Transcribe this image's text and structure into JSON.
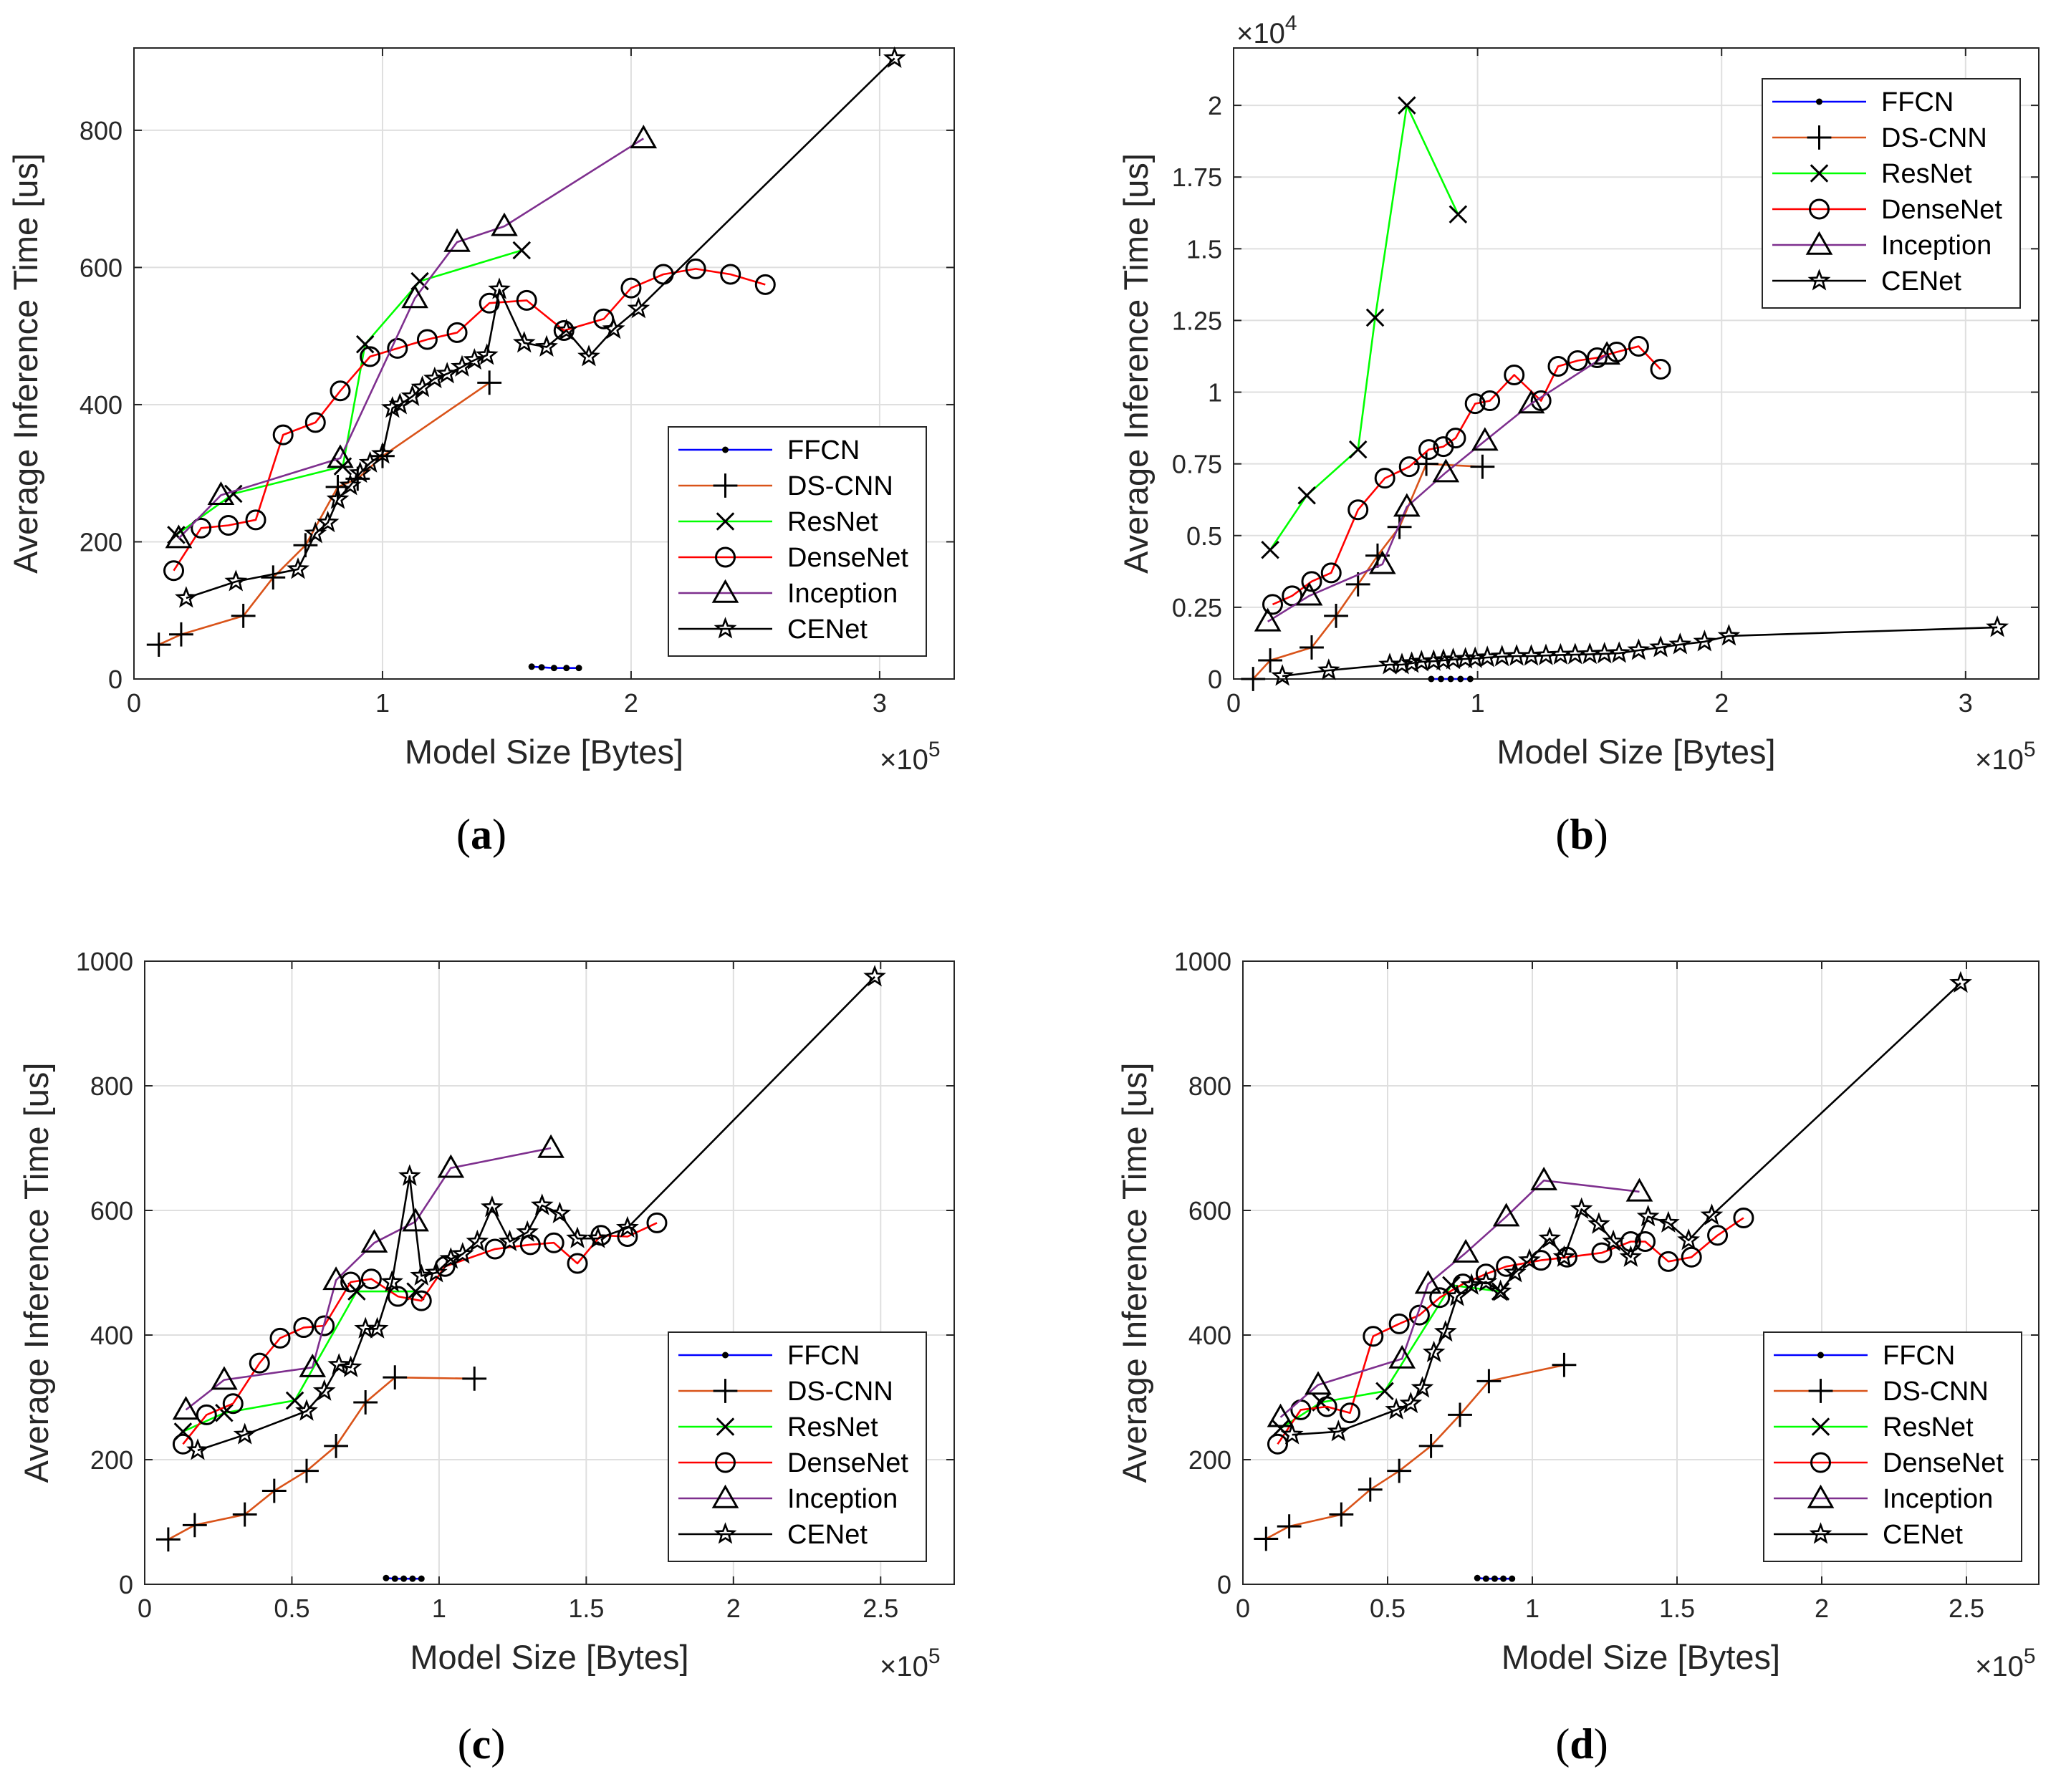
{
  "legend_entries": [
    "FFCN",
    "DS-CNN",
    "ResNet",
    "DenseNet",
    "Inception",
    "CENet"
  ],
  "series_styles": {
    "FFCN": {
      "color": "#0000ff",
      "marker": "dot"
    },
    "DS-CNN": {
      "color": "#d95319",
      "marker": "plus"
    },
    "ResNet": {
      "color": "#00ff00",
      "marker": "x"
    },
    "DenseNet": {
      "color": "#ff0000",
      "marker": "circle"
    },
    "Inception": {
      "color": "#7e2f8e",
      "marker": "triangle"
    },
    "CENet": {
      "color": "#000000",
      "marker": "star"
    }
  },
  "chart_data": [
    {
      "panel": "a",
      "type": "line",
      "panel_label_letter": "a",
      "xlabel": "Model Size [Bytes]",
      "ylabel": "Average Inference Time [us]",
      "x_exponent_label": "×10",
      "x_exponent_power": "5",
      "y_exponent_label": "",
      "y_exponent_power": "",
      "xlim": [
        0,
        3.3
      ],
      "ylim": [
        0,
        920
      ],
      "x_ticks": [
        0,
        1,
        2,
        3
      ],
      "x_tick_labels": [
        "0",
        "1",
        "2",
        "3"
      ],
      "y_ticks": [
        0,
        200,
        400,
        600,
        800
      ],
      "y_tick_labels": [
        "0",
        "200",
        "400",
        "600",
        "800"
      ],
      "grid": true,
      "legend_position": "bottom-right",
      "series": [
        {
          "name": "FFCN",
          "x": [
            1.6,
            1.64,
            1.69,
            1.74,
            1.79
          ],
          "y": [
            18,
            17,
            16,
            16,
            16
          ]
        },
        {
          "name": "DS-CNN",
          "x": [
            0.1,
            0.19,
            0.44,
            0.56,
            0.69,
            0.82,
            0.9,
            1.0,
            1.43
          ],
          "y": [
            50,
            65,
            92,
            148,
            195,
            280,
            292,
            325,
            432
          ]
        },
        {
          "name": "ResNet",
          "x": [
            0.17,
            0.4,
            0.84,
            0.93,
            1.15,
            1.56
          ],
          "y": [
            210,
            270,
            310,
            488,
            580,
            625
          ]
        },
        {
          "name": "DenseNet",
          "x": [
            0.16,
            0.27,
            0.38,
            0.49,
            0.6,
            0.73,
            0.83,
            0.95,
            1.06,
            1.18,
            1.3,
            1.43,
            1.58,
            1.73,
            1.89,
            2.0,
            2.13,
            2.26,
            2.4,
            2.54
          ],
          "y": [
            158,
            220,
            224,
            232,
            356,
            374,
            420,
            470,
            482,
            495,
            505,
            548,
            552,
            508,
            525,
            570,
            590,
            598,
            590,
            575
          ]
        },
        {
          "name": "Inception",
          "x": [
            0.18,
            0.35,
            0.83,
            1.13,
            1.3,
            1.49,
            2.05
          ],
          "y": [
            205,
            268,
            322,
            555,
            637,
            660,
            788
          ]
        },
        {
          "name": "CENet",
          "x": [
            0.21,
            0.41,
            0.66,
            0.73,
            0.78,
            0.82,
            0.87,
            0.91,
            0.95,
            1.0,
            1.04,
            1.07,
            1.12,
            1.16,
            1.21,
            1.26,
            1.32,
            1.37,
            1.42,
            1.47,
            1.57,
            1.66,
            1.74,
            1.83,
            1.93,
            2.03,
            3.06
          ],
          "y": [
            118,
            142,
            160,
            212,
            228,
            262,
            282,
            300,
            315,
            328,
            395,
            400,
            412,
            425,
            438,
            445,
            455,
            465,
            472,
            568,
            490,
            484,
            508,
            470,
            510,
            540,
            905
          ]
        }
      ]
    },
    {
      "panel": "b",
      "type": "line",
      "panel_label_letter": "b",
      "xlabel": "Model Size [Bytes]",
      "ylabel": "Average Inference Time [us]",
      "x_exponent_label": "×10",
      "x_exponent_power": "5",
      "y_exponent_label": "×10",
      "y_exponent_power": "4",
      "xlim": [
        0,
        3.3
      ],
      "ylim": [
        0,
        2.2
      ],
      "x_ticks": [
        0,
        1,
        2,
        3
      ],
      "x_tick_labels": [
        "0",
        "1",
        "2",
        "3"
      ],
      "y_ticks": [
        0,
        0.25,
        0.5,
        0.75,
        1,
        1.25,
        1.5,
        1.75,
        2
      ],
      "y_tick_labels": [
        "0",
        "0.25",
        "0.5",
        "0.75",
        "1",
        "1.25",
        "1.5",
        "1.75",
        "2"
      ],
      "grid": true,
      "legend_position": "top-right",
      "series": [
        {
          "name": "FFCN",
          "x": [
            0.81,
            0.85,
            0.89,
            0.93,
            0.97
          ],
          "y": [
            0.0,
            0.0,
            0.0,
            0.0,
            0.0
          ]
        },
        {
          "name": "DS-CNN",
          "x": [
            0.08,
            0.15,
            0.32,
            0.42,
            0.51,
            0.59,
            0.68,
            0.79,
            1.02
          ],
          "y": [
            0.0,
            0.065,
            0.11,
            0.22,
            0.33,
            0.43,
            0.53,
            0.75,
            0.74
          ]
        },
        {
          "name": "ResNet",
          "x": [
            0.15,
            0.3,
            0.51,
            0.58,
            0.71,
            0.92
          ],
          "y": [
            0.45,
            0.64,
            0.8,
            1.26,
            2.0,
            1.62
          ]
        },
        {
          "name": "DenseNet",
          "x": [
            0.16,
            0.24,
            0.32,
            0.4,
            0.51,
            0.62,
            0.72,
            0.8,
            0.86,
            0.91,
            0.99,
            1.05,
            1.15,
            1.26,
            1.33,
            1.41,
            1.49,
            1.57,
            1.66,
            1.75
          ],
          "y": [
            0.26,
            0.29,
            0.34,
            0.37,
            0.59,
            0.7,
            0.74,
            0.8,
            0.81,
            0.84,
            0.96,
            0.97,
            1.06,
            0.97,
            1.09,
            1.11,
            1.12,
            1.14,
            1.16,
            1.08
          ]
        },
        {
          "name": "Inception",
          "x": [
            0.14,
            0.31,
            0.61,
            0.71,
            0.87,
            1.03,
            1.22,
            1.53
          ],
          "y": [
            0.2,
            0.29,
            0.4,
            0.6,
            0.72,
            0.83,
            0.96,
            1.13
          ]
        },
        {
          "name": "CENet",
          "x": [
            0.2,
            0.39,
            0.64,
            0.69,
            0.73,
            0.77,
            0.82,
            0.86,
            0.9,
            0.95,
            0.99,
            1.04,
            1.1,
            1.16,
            1.22,
            1.28,
            1.34,
            1.4,
            1.46,
            1.52,
            1.58,
            1.66,
            1.75,
            1.83,
            1.93,
            2.03,
            3.13
          ],
          "y": [
            0.01,
            0.03,
            0.05,
            0.05,
            0.055,
            0.06,
            0.062,
            0.065,
            0.068,
            0.07,
            0.072,
            0.075,
            0.078,
            0.08,
            0.08,
            0.082,
            0.084,
            0.085,
            0.086,
            0.088,
            0.09,
            0.1,
            0.11,
            0.12,
            0.13,
            0.15,
            0.18
          ]
        }
      ]
    },
    {
      "panel": "c",
      "type": "line",
      "panel_label_letter": "c",
      "xlabel": "Model Size [Bytes]",
      "ylabel": "Average Inference Time [us]",
      "x_exponent_label": "×10",
      "x_exponent_power": "5",
      "y_exponent_label": "",
      "y_exponent_power": "",
      "xlim": [
        0,
        2.75
      ],
      "ylim": [
        0,
        1000
      ],
      "x_ticks": [
        0,
        0.5,
        1,
        1.5,
        2,
        2.5
      ],
      "x_tick_labels": [
        "0",
        "0.5",
        "1",
        "1.5",
        "2",
        "2.5"
      ],
      "y_ticks": [
        0,
        200,
        400,
        600,
        800,
        1000
      ],
      "y_tick_labels": [
        "0",
        "200",
        "400",
        "600",
        "800",
        "1000"
      ],
      "grid": true,
      "legend_position": "bottom-right",
      "series": [
        {
          "name": "FFCN",
          "x": [
            0.82,
            0.85,
            0.88,
            0.91,
            0.94
          ],
          "y": [
            10,
            9,
            9,
            9,
            9
          ]
        },
        {
          "name": "DS-CNN",
          "x": [
            0.08,
            0.17,
            0.34,
            0.44,
            0.55,
            0.65,
            0.75,
            0.85,
            1.12
          ],
          "y": [
            72,
            95,
            112,
            150,
            182,
            222,
            292,
            332,
            330
          ]
        },
        {
          "name": "ResNet",
          "x": [
            0.13,
            0.27,
            0.51,
            0.72,
            0.92
          ],
          "y": [
            245,
            275,
            295,
            470,
            470
          ]
        },
        {
          "name": "DenseNet",
          "x": [
            0.13,
            0.21,
            0.3,
            0.39,
            0.46,
            0.54,
            0.61,
            0.7,
            0.77,
            0.86,
            0.94,
            1.02,
            1.19,
            1.31,
            1.39,
            1.47,
            1.55,
            1.64,
            1.74
          ],
          "y": [
            225,
            272,
            290,
            355,
            395,
            412,
            415,
            485,
            490,
            462,
            455,
            510,
            538,
            545,
            548,
            515,
            560,
            558,
            580
          ]
        },
        {
          "name": "Inception",
          "x": [
            0.14,
            0.27,
            0.57,
            0.65,
            0.78,
            0.92,
            1.04,
            1.38
          ],
          "y": [
            280,
            328,
            348,
            488,
            548,
            582,
            668,
            700
          ]
        },
        {
          "name": "CENet",
          "x": [
            0.18,
            0.34,
            0.55,
            0.61,
            0.66,
            0.7,
            0.75,
            0.79,
            0.84,
            0.9,
            0.94,
            0.99,
            1.04,
            1.08,
            1.13,
            1.18,
            1.24,
            1.3,
            1.35,
            1.41,
            1.47,
            1.54,
            1.64,
            2.48
          ],
          "y": [
            215,
            240,
            278,
            310,
            352,
            348,
            410,
            410,
            485,
            655,
            495,
            500,
            522,
            530,
            550,
            605,
            550,
            565,
            608,
            595,
            555,
            555,
            572,
            975
          ]
        }
      ]
    },
    {
      "panel": "d",
      "type": "line",
      "panel_label_letter": "d",
      "xlabel": "Model Size [Bytes]",
      "ylabel": "Average Inference Time [us]",
      "x_exponent_label": "×10",
      "x_exponent_power": "5",
      "y_exponent_label": "",
      "y_exponent_power": "",
      "xlim": [
        0,
        2.75
      ],
      "ylim": [
        0,
        1000
      ],
      "x_ticks": [
        0,
        0.5,
        1,
        1.5,
        2,
        2.5
      ],
      "x_tick_labels": [
        "0",
        "0.5",
        "1",
        "1.5",
        "2",
        "2.5"
      ],
      "y_ticks": [
        0,
        200,
        400,
        600,
        800,
        1000
      ],
      "y_tick_labels": [
        "0",
        "200",
        "400",
        "600",
        "800",
        "1000"
      ],
      "grid": true,
      "legend_position": "bottom-right",
      "series": [
        {
          "name": "FFCN",
          "x": [
            0.81,
            0.84,
            0.87,
            0.9,
            0.93
          ],
          "y": [
            10,
            9,
            9,
            9,
            9
          ]
        },
        {
          "name": "DS-CNN",
          "x": [
            0.08,
            0.16,
            0.34,
            0.44,
            0.54,
            0.65,
            0.75,
            0.85,
            1.11
          ],
          "y": [
            73,
            93,
            112,
            152,
            182,
            222,
            272,
            326,
            352
          ]
        },
        {
          "name": "ResNet",
          "x": [
            0.13,
            0.27,
            0.49,
            0.72,
            0.89
          ],
          "y": [
            250,
            292,
            310,
            480,
            470
          ]
        },
        {
          "name": "DenseNet",
          "x": [
            0.12,
            0.2,
            0.29,
            0.37,
            0.45,
            0.54,
            0.61,
            0.68,
            0.76,
            0.84,
            0.91,
            1.03,
            1.12,
            1.24,
            1.34,
            1.39,
            1.47,
            1.55,
            1.64,
            1.73
          ],
          "y": [
            225,
            280,
            285,
            275,
            398,
            418,
            432,
            460,
            482,
            498,
            510,
            520,
            525,
            532,
            550,
            550,
            518,
            525,
            560,
            588
          ]
        },
        {
          "name": "Inception",
          "x": [
            0.13,
            0.26,
            0.55,
            0.64,
            0.77,
            0.91,
            1.04,
            1.37
          ],
          "y": [
            268,
            320,
            362,
            482,
            532,
            590,
            648,
            630
          ]
        },
        {
          "name": "CENet",
          "x": [
            0.17,
            0.33,
            0.53,
            0.58,
            0.62,
            0.66,
            0.7,
            0.74,
            0.79,
            0.84,
            0.89,
            0.94,
            0.99,
            1.06,
            1.11,
            1.17,
            1.23,
            1.28,
            1.34,
            1.4,
            1.47,
            1.54,
            1.62,
            2.48
          ],
          "y": [
            240,
            245,
            280,
            290,
            315,
            372,
            405,
            462,
            480,
            485,
            470,
            500,
            520,
            555,
            525,
            602,
            578,
            550,
            525,
            590,
            580,
            552,
            592,
            965
          ]
        }
      ]
    }
  ]
}
